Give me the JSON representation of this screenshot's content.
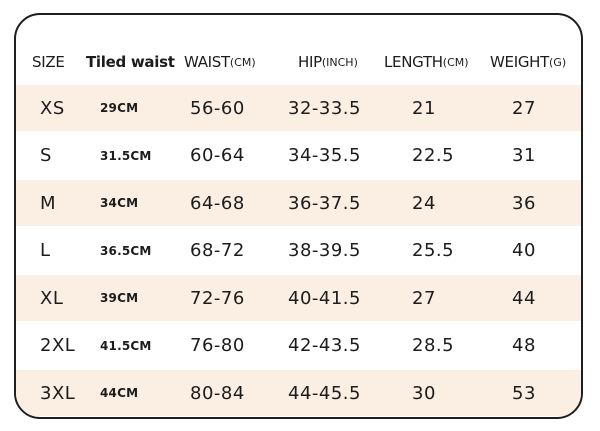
{
  "table": {
    "headers": {
      "size": "SIZE",
      "tiled_waist": "Tiled waist",
      "waist": "WAIST",
      "waist_unit": "(CM)",
      "hip": "HIP",
      "hip_unit": "(INCH)",
      "length": "LENGTH",
      "length_unit": "(CM)",
      "weight": "WEIGHT",
      "weight_unit": "(G)"
    },
    "rows": [
      {
        "size": "XS",
        "tiled_waist": "29CM",
        "waist": "56-60",
        "hip": "32-33.5",
        "length": "21",
        "weight": "27"
      },
      {
        "size": "S",
        "tiled_waist": "31.5CM",
        "waist": "60-64",
        "hip": "34-35.5",
        "length": "22.5",
        "weight": "31"
      },
      {
        "size": "M",
        "tiled_waist": "34CM",
        "waist": "64-68",
        "hip": "36-37.5",
        "length": "24",
        "weight": "36"
      },
      {
        "size": "L",
        "tiled_waist": "36.5CM",
        "waist": "68-72",
        "hip": "38-39.5",
        "length": "25.5",
        "weight": "40"
      },
      {
        "size": "XL",
        "tiled_waist": "39CM",
        "waist": "72-76",
        "hip": "40-41.5",
        "length": "27",
        "weight": "44"
      },
      {
        "size": "2XL",
        "tiled_waist": "41.5CM",
        "waist": "76-80",
        "hip": "42-43.5",
        "length": "28.5",
        "weight": "48"
      },
      {
        "size": "3XL",
        "tiled_waist": "44CM",
        "waist": "80-84",
        "hip": "44-45.5",
        "length": "30",
        "weight": "53"
      }
    ]
  },
  "colors": {
    "row_shade": "#fbeee3",
    "border": "#1e1e1e",
    "text": "#1c1c1c"
  }
}
